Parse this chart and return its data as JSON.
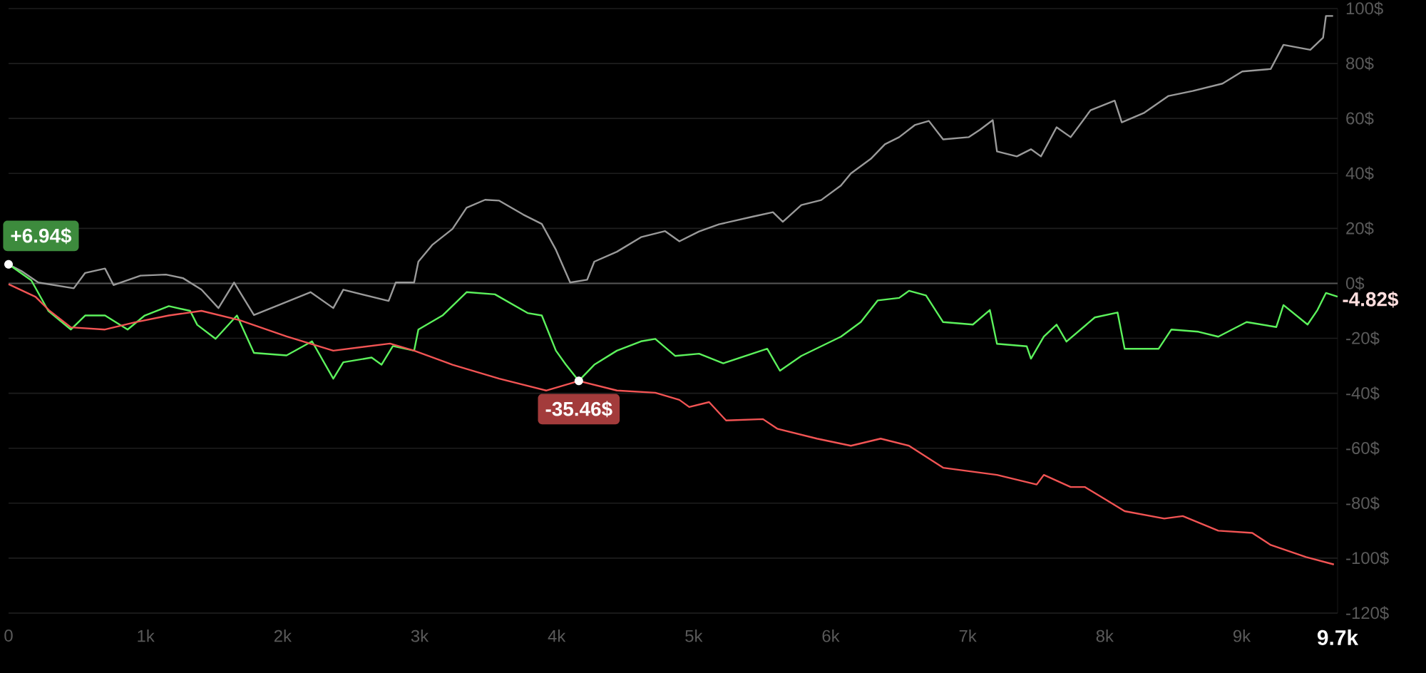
{
  "chart_data": {
    "type": "line",
    "xlim": [
      0,
      9700
    ],
    "ylim": [
      -120,
      100
    ],
    "xticks": [
      0,
      {
        "value": 1000,
        "label": "1k"
      },
      {
        "value": 2000,
        "label": "2k"
      },
      {
        "value": 3000,
        "label": "3k"
      },
      {
        "value": 4000,
        "label": "4k"
      },
      {
        "value": 5000,
        "label": "5k"
      },
      {
        "value": 6000,
        "label": "6k"
      },
      {
        "value": 7000,
        "label": "7k"
      },
      {
        "value": 8000,
        "label": "8k"
      },
      {
        "value": 9000,
        "label": "9k"
      },
      {
        "value": 9700,
        "label": "9.7k"
      }
    ],
    "yticks": [
      {
        "value": 100,
        "label": "100$"
      },
      {
        "value": 80,
        "label": "80$"
      },
      {
        "value": 60,
        "label": "60$"
      },
      {
        "value": 40,
        "label": "40$"
      },
      {
        "value": 20,
        "label": "20$"
      },
      {
        "value": 0,
        "label": "0$"
      },
      {
        "value": -20,
        "label": "-20$"
      },
      {
        "value": -40,
        "label": "-40$"
      },
      {
        "value": -60,
        "label": "-60$"
      },
      {
        "value": -80,
        "label": "-80$"
      },
      {
        "value": -100,
        "label": "-100$"
      },
      {
        "value": -120,
        "label": "-120$"
      }
    ],
    "grid": "y",
    "line_style": "solid",
    "marker": "none",
    "ref_lines": [
      {
        "axis": "y",
        "value": 0,
        "color": "#555555"
      }
    ],
    "annotations": [
      {
        "text": "+6.94$",
        "x": 0,
        "y": 6.94
      },
      {
        "text": "-35.46$",
        "x": 4162,
        "y": -35.46
      },
      {
        "text": "-4.82$",
        "x": 9700,
        "y": -4.82
      }
    ],
    "series": [
      {
        "color": "#9a9a9a",
        "x": [
          0,
          93,
          217,
          476,
          559,
          704,
          766,
          963,
          1149,
          1273,
          1408,
          1532,
          1646,
          1791,
          1998,
          2204,
          2370,
          2443,
          2774,
          2826,
          2960,
          2991,
          3095,
          3240,
          3343,
          3478,
          3581,
          3757,
          3892,
          3995,
          4099,
          4223,
          4275,
          4440,
          4616,
          4792,
          4896,
          5040,
          5185,
          5434,
          5579,
          5651,
          5786,
          5931,
          6075,
          6148,
          6293,
          6396,
          6500,
          6614,
          6717,
          6821,
          7007,
          7090,
          7183,
          7214,
          7359,
          7462,
          7535,
          7649,
          7752,
          7897,
          8073,
          8125,
          8290,
          8466,
          8642,
          8860,
          9004,
          9212,
          9305,
          9501,
          9594,
          9615,
          9667
        ],
        "values": [
          6.9,
          4.5,
          0.3,
          -1.8,
          3.8,
          5.4,
          -0.6,
          2.8,
          3.2,
          1.9,
          -2.3,
          -9.0,
          0.3,
          -11.5,
          -7.4,
          -3.2,
          -9.0,
          -2.3,
          -6.4,
          0.3,
          0.3,
          7.9,
          14.1,
          19.8,
          27.5,
          30.4,
          30.1,
          25.0,
          21.6,
          12.2,
          0.3,
          1.3,
          7.9,
          11.5,
          16.8,
          19.0,
          15.3,
          18.9,
          21.5,
          24.3,
          25.9,
          22.4,
          28.5,
          30.3,
          35.6,
          40.0,
          45.3,
          50.6,
          53.2,
          57.6,
          59.1,
          52.4,
          53.2,
          55.9,
          59.4,
          48.0,
          46.2,
          48.8,
          46.2,
          56.8,
          53.2,
          63.0,
          66.5,
          58.6,
          62.1,
          68.2,
          70.0,
          72.7,
          77.1,
          78.0,
          86.8,
          85.0,
          89.4,
          97.3,
          97.3
        ]
      },
      {
        "color": "#5cf25c",
        "x": [
          0,
          166,
          290,
          455,
          559,
          704,
          869,
          994,
          1170,
          1325,
          1377,
          1511,
          1667,
          1791,
          2029,
          2215,
          2370,
          2443,
          2650,
          2722,
          2805,
          2960,
          2991,
          3167,
          3343,
          3550,
          3788,
          3892,
          3995,
          4068,
          4162,
          4275,
          4440,
          4616,
          4720,
          4865,
          5040,
          5216,
          5537,
          5630,
          5786,
          6075,
          6220,
          6344,
          6500,
          6572,
          6696,
          6821,
          7038,
          7162,
          7214,
          7431,
          7462,
          7556,
          7649,
          7721,
          7928,
          8094,
          8146,
          8394,
          8487,
          8684,
          8829,
          9036,
          9253,
          9305,
          9481,
          9553,
          9615,
          9700
        ],
        "values": [
          6.94,
          1.1,
          -10.0,
          -16.8,
          -11.7,
          -11.7,
          -16.8,
          -11.7,
          -8.3,
          -10.0,
          -15.1,
          -20.2,
          -11.7,
          -25.3,
          -26.2,
          -21.1,
          -34.7,
          -28.7,
          -27.0,
          -29.6,
          -22.8,
          -24.5,
          -16.8,
          -11.7,
          -3.2,
          -4.0,
          -10.8,
          -11.7,
          -24.5,
          -29.6,
          -35.46,
          -29.6,
          -24.5,
          -21.1,
          -20.2,
          -26.4,
          -25.6,
          -29.1,
          -23.8,
          -31.8,
          -26.4,
          -19.4,
          -14.1,
          -6.2,
          -5.3,
          -2.7,
          -4.4,
          -14.1,
          -15.0,
          -9.7,
          -22.0,
          -22.9,
          -27.4,
          -19.4,
          -15.0,
          -21.2,
          -12.4,
          -10.6,
          -23.8,
          -23.8,
          -16.8,
          -17.6,
          -19.4,
          -14.1,
          -15.9,
          -7.9,
          -15.0,
          -9.7,
          -3.5,
          -4.82
        ]
      },
      {
        "color": "#f25454",
        "x": [
          0,
          197,
          300,
          455,
          704,
          921,
          1170,
          1408,
          1687,
          2029,
          2370,
          2784,
          2960,
          3240,
          3581,
          3923,
          4162,
          4440,
          4720,
          4896,
          4968,
          5113,
          5237,
          5506,
          5610,
          5900,
          6148,
          6365,
          6572,
          6821,
          7214,
          7504,
          7556,
          7752,
          7855,
          8001,
          8146,
          8435,
          8570,
          8829,
          9077,
          9212,
          9470,
          9673
        ],
        "values": [
          -0.3,
          -4.9,
          -10.0,
          -16.0,
          -16.8,
          -14.2,
          -11.7,
          -10.0,
          -13.4,
          -19.3,
          -24.5,
          -21.9,
          -24.5,
          -29.6,
          -34.7,
          -39.0,
          -35.5,
          -39.0,
          -39.8,
          -42.4,
          -45.0,
          -43.2,
          -49.9,
          -49.4,
          -52.9,
          -56.5,
          -59.1,
          -56.5,
          -59.1,
          -67.1,
          -69.7,
          -73.2,
          -69.7,
          -74.1,
          -74.1,
          -78.5,
          -82.9,
          -85.6,
          -84.7,
          -90.0,
          -90.8,
          -95.2,
          -99.6,
          -102.3
        ]
      }
    ]
  }
}
